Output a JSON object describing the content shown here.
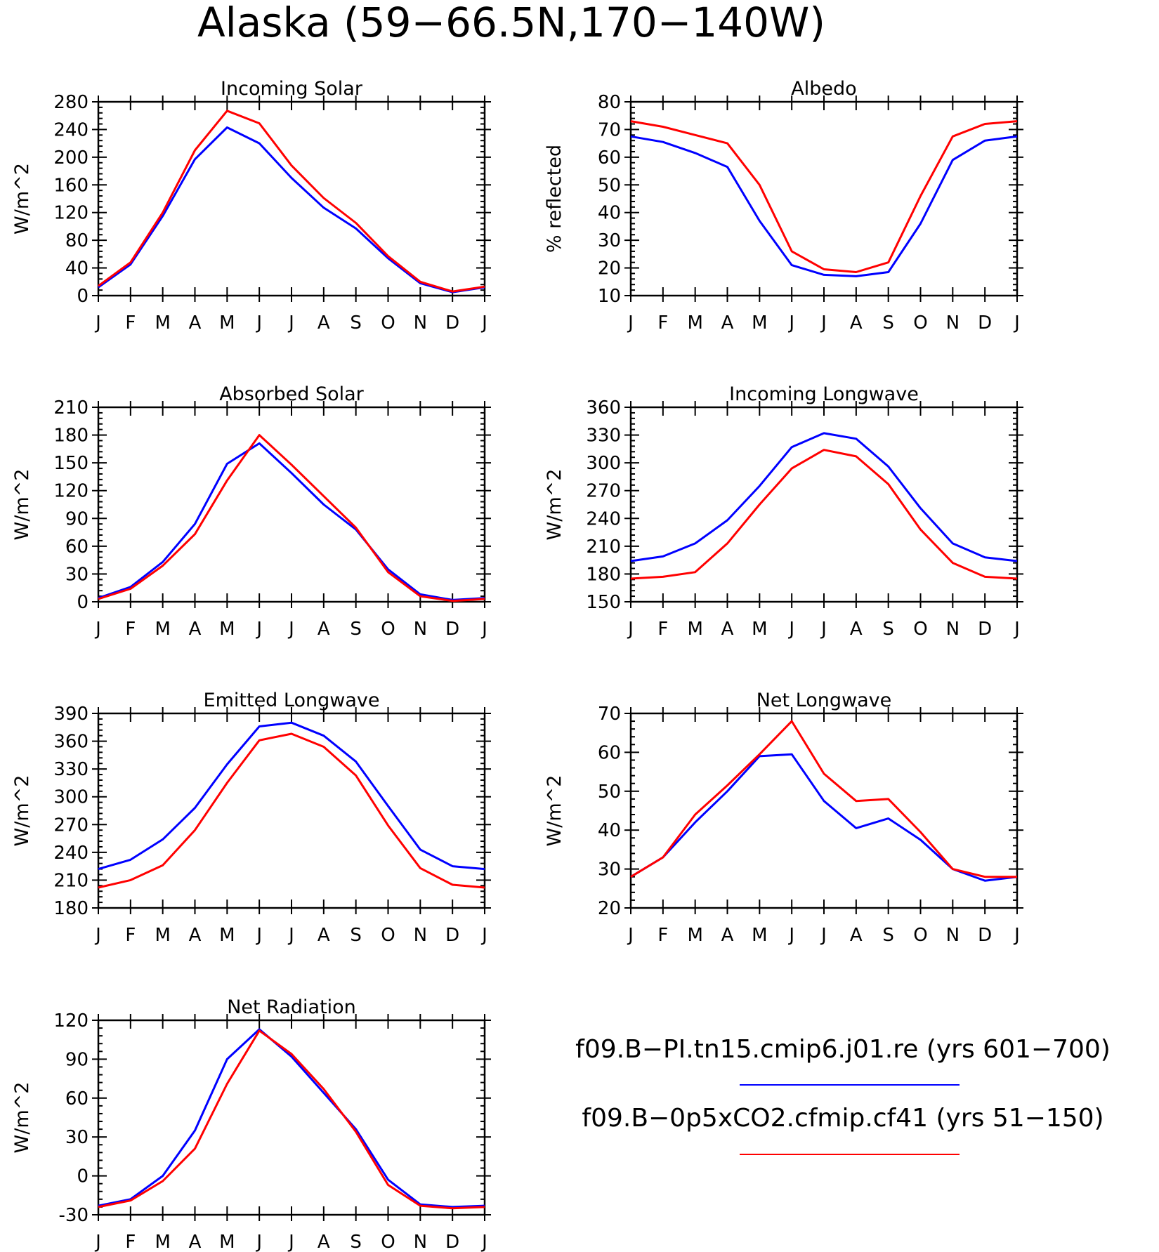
{
  "figure_title": "Alaska (59−66.5N,170−140W)",
  "colors": {
    "series_1": "#0000ff",
    "series_2": "#ff0000",
    "axis": "#000000"
  },
  "legend": [
    {
      "label": "f09.B−PI.tn15.cmip6.j01.re (yrs 601−700)",
      "color": "#0000ff"
    },
    {
      "label": "f09.B−0p5xCO2.cfmip.cf41 (yrs 51−150)",
      "color": "#ff0000"
    }
  ],
  "chart_data": [
    {
      "type": "line",
      "title": "Incoming Solar",
      "ylabel": "W/m^2",
      "ylim": [
        0,
        280
      ],
      "yticks": [
        0,
        40,
        80,
        120,
        160,
        200,
        240,
        280
      ],
      "categories": [
        "J",
        "F",
        "M",
        "A",
        "M",
        "J",
        "J",
        "A",
        "S",
        "O",
        "N",
        "D",
        "J"
      ],
      "series": [
        {
          "name": "f09.B−PI.tn15.cmip6.j01.re (yrs 601−700)",
          "color": "#0000ff",
          "values": [
            12,
            45,
            115,
            197,
            243,
            220,
            170,
            127,
            97,
            54,
            18,
            5,
            12
          ]
        },
        {
          "name": "f09.B−0p5xCO2.cfmip.cf41 (yrs 51−150)",
          "color": "#ff0000",
          "values": [
            14,
            48,
            120,
            210,
            267,
            249,
            188,
            141,
            105,
            57,
            20,
            6,
            13
          ]
        }
      ]
    },
    {
      "type": "line",
      "title": "Albedo",
      "ylabel": "% reflected",
      "ylim": [
        10,
        80
      ],
      "yticks": [
        10,
        20,
        30,
        40,
        50,
        60,
        70,
        80
      ],
      "categories": [
        "J",
        "F",
        "M",
        "A",
        "M",
        "J",
        "J",
        "A",
        "S",
        "O",
        "N",
        "D",
        "J"
      ],
      "series": [
        {
          "name": "f09.B−PI.tn15.cmip6.j01.re (yrs 601−700)",
          "color": "#0000ff",
          "values": [
            67.5,
            65.5,
            61.5,
            56.5,
            37,
            21,
            17.5,
            17,
            18.5,
            36,
            59,
            66,
            67.5
          ]
        },
        {
          "name": "f09.B−0p5xCO2.cfmip.cf41 (yrs 51−150)",
          "color": "#ff0000",
          "values": [
            73,
            71,
            68,
            65,
            50,
            26,
            19.5,
            18.5,
            22,
            46,
            67.5,
            72,
            73
          ]
        }
      ]
    },
    {
      "type": "line",
      "title": "Absorbed Solar",
      "ylabel": "W/m^2",
      "ylim": [
        0,
        210
      ],
      "yticks": [
        0,
        30,
        60,
        90,
        120,
        150,
        180,
        210
      ],
      "categories": [
        "J",
        "F",
        "M",
        "A",
        "M",
        "J",
        "J",
        "A",
        "S",
        "O",
        "N",
        "D",
        "J"
      ],
      "series": [
        {
          "name": "f09.B−PI.tn15.cmip6.j01.re (yrs 601−700)",
          "color": "#0000ff",
          "values": [
            4,
            16,
            43,
            84,
            149,
            171,
            139,
            105,
            78,
            35,
            8,
            2,
            4
          ]
        },
        {
          "name": "f09.B−0p5xCO2.cfmip.cf41 (yrs 51−150)",
          "color": "#ff0000",
          "values": [
            3,
            14,
            39,
            73,
            131,
            180,
            148,
            114,
            80,
            32,
            6,
            1,
            3
          ]
        }
      ]
    },
    {
      "type": "line",
      "title": "Incoming Longwave",
      "ylabel": "W/m^2",
      "ylim": [
        150,
        360
      ],
      "yticks": [
        150,
        180,
        210,
        240,
        270,
        300,
        330,
        360
      ],
      "categories": [
        "J",
        "F",
        "M",
        "A",
        "M",
        "J",
        "J",
        "A",
        "S",
        "O",
        "N",
        "D",
        "J"
      ],
      "series": [
        {
          "name": "f09.B−PI.tn15.cmip6.j01.re (yrs 601−700)",
          "color": "#0000ff",
          "values": [
            194,
            199,
            213,
            238,
            275,
            317,
            332,
            326,
            296,
            251,
            213,
            198,
            194
          ]
        },
        {
          "name": "f09.B−0p5xCO2.cfmip.cf41 (yrs 51−150)",
          "color": "#ff0000",
          "values": [
            175,
            177,
            182,
            213,
            255,
            294,
            314,
            307,
            277,
            228,
            192,
            177,
            175
          ]
        }
      ]
    },
    {
      "type": "line",
      "title": "Emitted Longwave",
      "ylabel": "W/m^2",
      "ylim": [
        180,
        390
      ],
      "yticks": [
        180,
        210,
        240,
        270,
        300,
        330,
        360,
        390
      ],
      "categories": [
        "J",
        "F",
        "M",
        "A",
        "M",
        "J",
        "J",
        "A",
        "S",
        "O",
        "N",
        "D",
        "J"
      ],
      "series": [
        {
          "name": "f09.B−PI.tn15.cmip6.j01.re (yrs 601−700)",
          "color": "#0000ff",
          "values": [
            222,
            232,
            254,
            288,
            335,
            376,
            380,
            366,
            338,
            290,
            243,
            225,
            222
          ]
        },
        {
          "name": "f09.B−0p5xCO2.cfmip.cf41 (yrs 51−150)",
          "color": "#ff0000",
          "values": [
            202,
            210,
            226,
            264,
            315,
            361,
            368,
            354,
            323,
            269,
            223,
            205,
            202
          ]
        }
      ]
    },
    {
      "type": "line",
      "title": "Net Longwave",
      "ylabel": "W/m^2",
      "ylim": [
        20,
        70
      ],
      "yticks": [
        20,
        30,
        40,
        50,
        60,
        70
      ],
      "categories": [
        "J",
        "F",
        "M",
        "A",
        "M",
        "J",
        "J",
        "A",
        "S",
        "O",
        "N",
        "D",
        "J"
      ],
      "series": [
        {
          "name": "f09.B−PI.tn15.cmip6.j01.re (yrs 601−700)",
          "color": "#0000ff",
          "values": [
            28,
            33,
            42,
            50,
            59,
            59.5,
            47.5,
            40.5,
            43,
            37.5,
            30,
            27,
            28
          ]
        },
        {
          "name": "f09.B−0p5xCO2.cfmip.cf41 (yrs 51−150)",
          "color": "#ff0000",
          "values": [
            28,
            33,
            44,
            51.5,
            59.5,
            68,
            54.5,
            47.5,
            48,
            39.5,
            30,
            28,
            28
          ]
        }
      ]
    },
    {
      "type": "line",
      "title": "Net Radiation",
      "ylabel": "W/m^2",
      "ylim": [
        -30,
        120
      ],
      "yticks": [
        -30,
        0,
        30,
        60,
        90,
        120
      ],
      "categories": [
        "J",
        "F",
        "M",
        "A",
        "M",
        "J",
        "J",
        "A",
        "S",
        "O",
        "N",
        "D",
        "J"
      ],
      "series": [
        {
          "name": "f09.B−PI.tn15.cmip6.j01.re (yrs 601−700)",
          "color": "#0000ff",
          "values": [
            -23,
            -18,
            0,
            35,
            90,
            113,
            92,
            64,
            36,
            -3,
            -22,
            -24,
            -23
          ]
        },
        {
          "name": "f09.B−0p5xCO2.cfmip.cf41 (yrs 51−150)",
          "color": "#ff0000",
          "values": [
            -24,
            -19,
            -4,
            21,
            71,
            112,
            94,
            67,
            34,
            -7,
            -23,
            -25,
            -24
          ]
        }
      ]
    }
  ]
}
